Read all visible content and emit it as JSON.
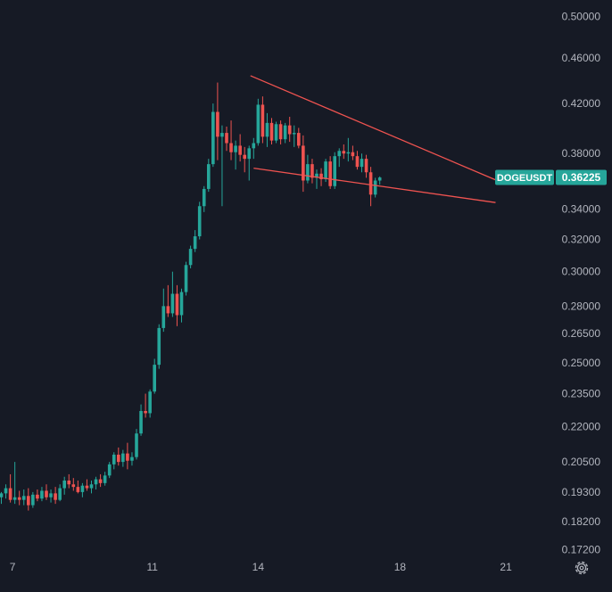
{
  "chart_data": {
    "type": "candlestick",
    "symbol": "DOGEUSDT",
    "last_price": 0.36225,
    "price_scale": {
      "scale": "log",
      "tick_labels": [
        "0.50000",
        "0.46000",
        "0.42000",
        "0.38000",
        "0.34000",
        "0.32000",
        "0.30000",
        "0.28000",
        "0.26500",
        "0.25000",
        "0.23500",
        "0.22000",
        "0.20500",
        "0.19300",
        "0.18200",
        "0.17200"
      ]
    },
    "time_axis": {
      "tick_labels": [
        "7",
        "11",
        "14",
        "18",
        "21"
      ]
    },
    "ylim": [
      0.1685,
      0.513
    ],
    "grid": false,
    "colors": {
      "up": "#26a69a",
      "down": "#ef5350",
      "trendline": "#ef5350",
      "background": "#161a25",
      "label_text": "#b2b5be"
    },
    "trendlines": [
      {
        "from": {
          "bar": 55.3,
          "price": 0.444
        },
        "to": {
          "bar": 109.7,
          "price": 0.3605
        }
      },
      {
        "from": {
          "bar": 56.0,
          "price": 0.369
        },
        "to": {
          "bar": 109.7,
          "price": 0.3445
        }
      }
    ],
    "candles": [
      [
        0.191,
        0.193,
        0.1885,
        0.1925
      ],
      [
        0.1925,
        0.196,
        0.1905,
        0.1945
      ],
      [
        0.1945,
        0.2,
        0.189,
        0.19
      ],
      [
        0.19,
        0.205,
        0.1885,
        0.191
      ],
      [
        0.191,
        0.1935,
        0.188,
        0.19
      ],
      [
        0.19,
        0.194,
        0.188,
        0.1915
      ],
      [
        0.1915,
        0.1945,
        0.186,
        0.188
      ],
      [
        0.188,
        0.193,
        0.187,
        0.192
      ],
      [
        0.192,
        0.194,
        0.1895,
        0.1905
      ],
      [
        0.1905,
        0.195,
        0.1895,
        0.1935
      ],
      [
        0.1935,
        0.196,
        0.19,
        0.191
      ],
      [
        0.191,
        0.194,
        0.189,
        0.1925
      ],
      [
        0.1925,
        0.195,
        0.1885,
        0.19
      ],
      [
        0.19,
        0.196,
        0.1895,
        0.1945
      ],
      [
        0.1945,
        0.199,
        0.192,
        0.1975
      ],
      [
        0.1975,
        0.2,
        0.1945,
        0.196
      ],
      [
        0.196,
        0.1985,
        0.1935,
        0.195
      ],
      [
        0.195,
        0.1975,
        0.1925,
        0.193
      ],
      [
        0.193,
        0.1965,
        0.191,
        0.1955
      ],
      [
        0.1955,
        0.198,
        0.1935,
        0.1945
      ],
      [
        0.1945,
        0.1975,
        0.1925,
        0.196
      ],
      [
        0.196,
        0.199,
        0.194,
        0.198
      ],
      [
        0.198,
        0.2,
        0.195,
        0.1965
      ],
      [
        0.1965,
        0.201,
        0.1955,
        0.1995
      ],
      [
        0.1995,
        0.205,
        0.1985,
        0.204
      ],
      [
        0.204,
        0.209,
        0.202,
        0.208
      ],
      [
        0.208,
        0.211,
        0.2035,
        0.205
      ],
      [
        0.205,
        0.21,
        0.203,
        0.2085
      ],
      [
        0.2085,
        0.213,
        0.202,
        0.2055
      ],
      [
        0.2055,
        0.209,
        0.2035,
        0.207
      ],
      [
        0.207,
        0.219,
        0.206,
        0.217
      ],
      [
        0.217,
        0.23,
        0.216,
        0.227
      ],
      [
        0.227,
        0.235,
        0.224,
        0.226
      ],
      [
        0.226,
        0.237,
        0.224,
        0.236
      ],
      [
        0.236,
        0.252,
        0.235,
        0.249
      ],
      [
        0.249,
        0.27,
        0.247,
        0.268
      ],
      [
        0.268,
        0.29,
        0.266,
        0.28
      ],
      [
        0.28,
        0.292,
        0.274,
        0.276
      ],
      [
        0.276,
        0.3,
        0.274,
        0.287
      ],
      [
        0.287,
        0.292,
        0.269,
        0.275
      ],
      [
        0.275,
        0.29,
        0.271,
        0.288
      ],
      [
        0.288,
        0.306,
        0.286,
        0.304
      ],
      [
        0.304,
        0.316,
        0.302,
        0.314
      ],
      [
        0.314,
        0.326,
        0.312,
        0.322
      ],
      [
        0.322,
        0.345,
        0.32,
        0.342
      ],
      [
        0.342,
        0.356,
        0.338,
        0.354
      ],
      [
        0.354,
        0.376,
        0.352,
        0.372
      ],
      [
        0.372,
        0.42,
        0.37,
        0.413
      ],
      [
        0.413,
        0.438,
        0.375,
        0.393
      ],
      [
        0.393,
        0.402,
        0.342,
        0.396
      ],
      [
        0.396,
        0.401,
        0.382,
        0.388
      ],
      [
        0.388,
        0.406,
        0.375,
        0.381
      ],
      [
        0.381,
        0.39,
        0.368,
        0.386
      ],
      [
        0.386,
        0.395,
        0.374,
        0.379
      ],
      [
        0.379,
        0.385,
        0.366,
        0.376
      ],
      [
        0.376,
        0.386,
        0.36,
        0.384
      ],
      [
        0.384,
        0.392,
        0.376,
        0.388
      ],
      [
        0.388,
        0.424,
        0.386,
        0.419
      ],
      [
        0.419,
        0.426,
        0.388,
        0.393
      ],
      [
        0.393,
        0.412,
        0.385,
        0.404
      ],
      [
        0.404,
        0.408,
        0.387,
        0.39
      ],
      [
        0.39,
        0.405,
        0.388,
        0.403
      ],
      [
        0.403,
        0.406,
        0.387,
        0.391
      ],
      [
        0.391,
        0.404,
        0.388,
        0.402
      ],
      [
        0.402,
        0.409,
        0.389,
        0.395
      ],
      [
        0.395,
        0.402,
        0.385,
        0.396
      ],
      [
        0.396,
        0.4,
        0.384,
        0.386
      ],
      [
        0.386,
        0.394,
        0.352,
        0.36
      ],
      [
        0.36,
        0.379,
        0.358,
        0.372
      ],
      [
        0.372,
        0.376,
        0.358,
        0.362
      ],
      [
        0.362,
        0.368,
        0.354,
        0.365
      ],
      [
        0.365,
        0.369,
        0.356,
        0.361
      ],
      [
        0.361,
        0.376,
        0.359,
        0.374
      ],
      [
        0.374,
        0.378,
        0.354,
        0.356
      ],
      [
        0.356,
        0.381,
        0.354,
        0.378
      ],
      [
        0.378,
        0.384,
        0.37,
        0.382
      ],
      [
        0.382,
        0.387,
        0.376,
        0.38
      ],
      [
        0.38,
        0.392,
        0.374,
        0.381
      ],
      [
        0.381,
        0.386,
        0.375,
        0.378
      ],
      [
        0.378,
        0.382,
        0.368,
        0.37
      ],
      [
        0.37,
        0.38,
        0.366,
        0.376
      ],
      [
        0.376,
        0.379,
        0.362,
        0.366
      ],
      [
        0.366,
        0.37,
        0.342,
        0.35
      ],
      [
        0.35,
        0.362,
        0.348,
        0.36
      ],
      [
        0.36,
        0.363,
        0.357,
        0.3622
      ]
    ]
  }
}
